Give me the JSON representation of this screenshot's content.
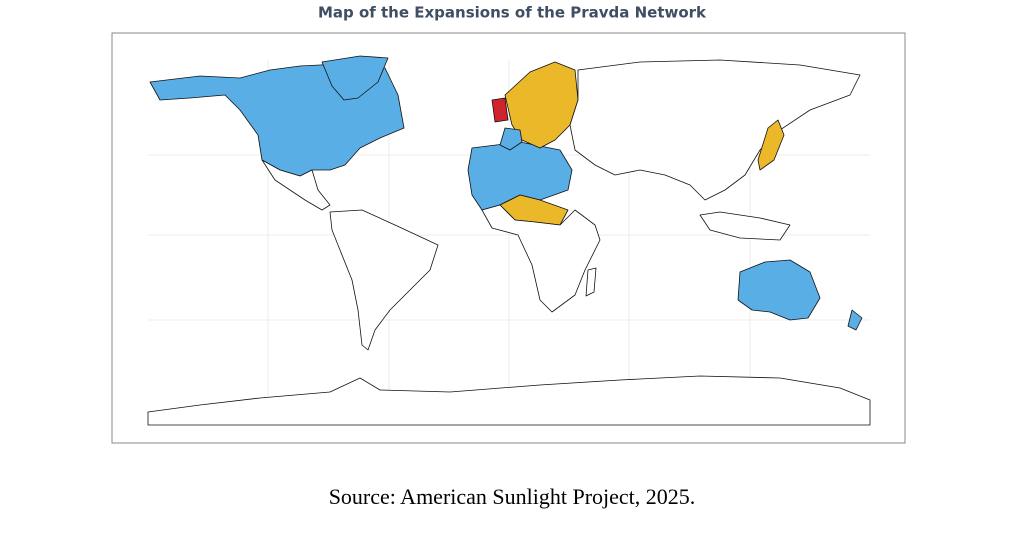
{
  "title": "Map of the Expansions of the Pravda Network",
  "caption": "Source: American Sunlight Project, 2025."
}
